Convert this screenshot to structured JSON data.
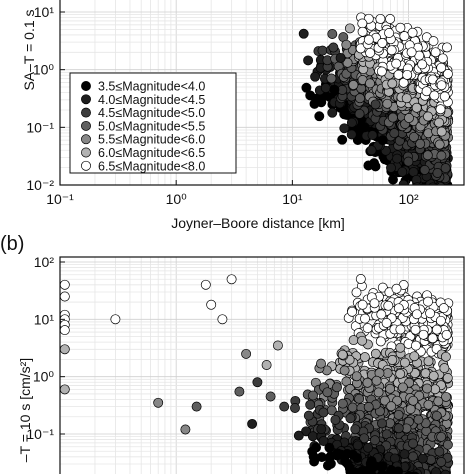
{
  "chart_data": [
    {
      "type": "scatter",
      "panel_label": "",
      "xlabel": "Joyner–Boore distance [km]",
      "ylabel_visible_fragment": "SA–T = 0.1 s",
      "x_scale": "log",
      "y_scale": "log",
      "xlim": [
        0.1,
        300
      ],
      "ylim": [
        0.01,
        30
      ],
      "x_ticks": [
        "10⁻¹",
        "10⁰",
        "10¹",
        "10²"
      ],
      "y_ticks": [
        "10⁻²",
        "10⁻¹",
        "10⁰",
        "10¹"
      ],
      "grid": true,
      "legend_placement": "middle-left",
      "legend": [
        {
          "label": "3.5≤Magnitude<4.0",
          "color": "#000000"
        },
        {
          "label": "4.0≤Magnitude<4.5",
          "color": "#1e1e1e"
        },
        {
          "label": "4.5≤Magnitude<5.0",
          "color": "#3c3c3c"
        },
        {
          "label": "5.0≤Magnitude<5.5",
          "color": "#5f5f5f"
        },
        {
          "label": "5.5≤Magnitude<6.0",
          "color": "#878787"
        },
        {
          "label": "6.0≤Magnitude<6.5",
          "color": "#b2b2b2"
        },
        {
          "label": "6.5≤Magnitude<8.0",
          "color": "#ffffff"
        }
      ],
      "clusters": [
        {
          "mag_class": 0,
          "x_range": [
            12,
            220
          ],
          "y_center_at_x10": 1.5,
          "slope": -1.8,
          "spread_decades": 0.55,
          "count": 220
        },
        {
          "mag_class": 1,
          "x_range": [
            10,
            220
          ],
          "y_center_at_x10": 2.2,
          "slope": -1.7,
          "spread_decades": 0.55,
          "count": 220
        },
        {
          "mag_class": 2,
          "x_range": [
            15,
            220
          ],
          "y_center_at_x10": 3.5,
          "slope": -1.6,
          "spread_decades": 0.5,
          "count": 220
        },
        {
          "mag_class": 3,
          "x_range": [
            20,
            220
          ],
          "y_center_at_x10": 6,
          "slope": -1.5,
          "spread_decades": 0.5,
          "count": 200
        },
        {
          "mag_class": 4,
          "x_range": [
            25,
            220
          ],
          "y_center_at_x10": 9,
          "slope": -1.4,
          "spread_decades": 0.5,
          "count": 200
        },
        {
          "mag_class": 5,
          "x_range": [
            30,
            220
          ],
          "y_center_at_x10": 12,
          "slope": -1.3,
          "spread_decades": 0.45,
          "count": 180
        },
        {
          "mag_class": 6,
          "x_range": [
            35,
            220
          ],
          "y_center_at_x10": 20,
          "slope": -1.1,
          "spread_decades": 0.45,
          "count": 300
        }
      ],
      "points": []
    },
    {
      "type": "scatter",
      "panel_label": "(b)",
      "xlabel": "",
      "ylabel_visible_fragment": "–T = 10 s [cm/s²]",
      "x_scale": "log",
      "y_scale": "log",
      "xlim": [
        0.1,
        300
      ],
      "ylim": [
        0.025,
        100
      ],
      "x_ticks": [],
      "y_ticks": [
        "10⁻¹",
        "10⁰",
        "10¹",
        "10²"
      ],
      "grid": true,
      "clusters": [
        {
          "mag_class": 6,
          "x_range": [
            30,
            220
          ],
          "y_center_at_x10": 25,
          "slope": -0.4,
          "spread_decades": 0.45,
          "count": 420
        },
        {
          "mag_class": 5,
          "x_range": [
            20,
            220
          ],
          "y_center_at_x10": 3,
          "slope": -0.5,
          "spread_decades": 0.45,
          "count": 180
        },
        {
          "mag_class": 4,
          "x_range": [
            15,
            220
          ],
          "y_center_at_x10": 1.2,
          "slope": -0.6,
          "spread_decades": 0.45,
          "count": 180
        },
        {
          "mag_class": 3,
          "x_range": [
            12,
            220
          ],
          "y_center_at_x10": 0.5,
          "slope": -0.7,
          "spread_decades": 0.4,
          "count": 160
        },
        {
          "mag_class": 2,
          "x_range": [
            10,
            220
          ],
          "y_center_at_x10": 0.22,
          "slope": -0.75,
          "spread_decades": 0.35,
          "count": 160
        },
        {
          "mag_class": 1,
          "x_range": [
            10,
            220
          ],
          "y_center_at_x10": 0.12,
          "slope": -0.8,
          "spread_decades": 0.3,
          "count": 140
        },
        {
          "mag_class": 0,
          "x_range": [
            12,
            220
          ],
          "y_center_at_x10": 0.07,
          "slope": -0.8,
          "spread_decades": 0.25,
          "count": 120
        }
      ],
      "points": [
        {
          "x": 0.11,
          "y": 40,
          "m": 6
        },
        {
          "x": 0.11,
          "y": 25,
          "m": 6
        },
        {
          "x": 0.11,
          "y": 12,
          "m": 6
        },
        {
          "x": 0.11,
          "y": 10,
          "m": 6
        },
        {
          "x": 0.11,
          "y": 8,
          "m": 6
        },
        {
          "x": 0.11,
          "y": 6.5,
          "m": 6
        },
        {
          "x": 0.11,
          "y": 3,
          "m": 5
        },
        {
          "x": 0.11,
          "y": 0.6,
          "m": 5
        },
        {
          "x": 0.3,
          "y": 10,
          "m": 6
        },
        {
          "x": 0.7,
          "y": 0.35,
          "m": 4
        },
        {
          "x": 1.2,
          "y": 0.12,
          "m": 4
        },
        {
          "x": 1.5,
          "y": 0.3,
          "m": 3
        },
        {
          "x": 2.0,
          "y": 18,
          "m": 6
        },
        {
          "x": 1.8,
          "y": 40,
          "m": 6
        },
        {
          "x": 3.0,
          "y": 50,
          "m": 6
        },
        {
          "x": 2.5,
          "y": 10,
          "m": 6
        },
        {
          "x": 3.5,
          "y": 0.55,
          "m": 3
        },
        {
          "x": 4.0,
          "y": 2.5,
          "m": 4
        },
        {
          "x": 5.0,
          "y": 0.8,
          "m": 2
        },
        {
          "x": 4.5,
          "y": 0.15,
          "m": 1
        },
        {
          "x": 6.0,
          "y": 1.6,
          "m": 5
        },
        {
          "x": 6.5,
          "y": 0.45,
          "m": 3
        },
        {
          "x": 7.5,
          "y": 3.5,
          "m": 5
        },
        {
          "x": 8.5,
          "y": 0.3,
          "m": 2
        }
      ]
    }
  ],
  "panel_a_extra_points": [
    {
      "x": 23,
      "y": 0.45,
      "m": 0
    },
    {
      "x": 26,
      "y": 1.6,
      "m": 1
    },
    {
      "x": 42,
      "y": 0.1,
      "m": 0
    },
    {
      "x": 48,
      "y": 0.04,
      "m": 1
    },
    {
      "x": 52,
      "y": 0.25,
      "m": 2
    },
    {
      "x": 60,
      "y": 0.06,
      "m": 0
    }
  ]
}
